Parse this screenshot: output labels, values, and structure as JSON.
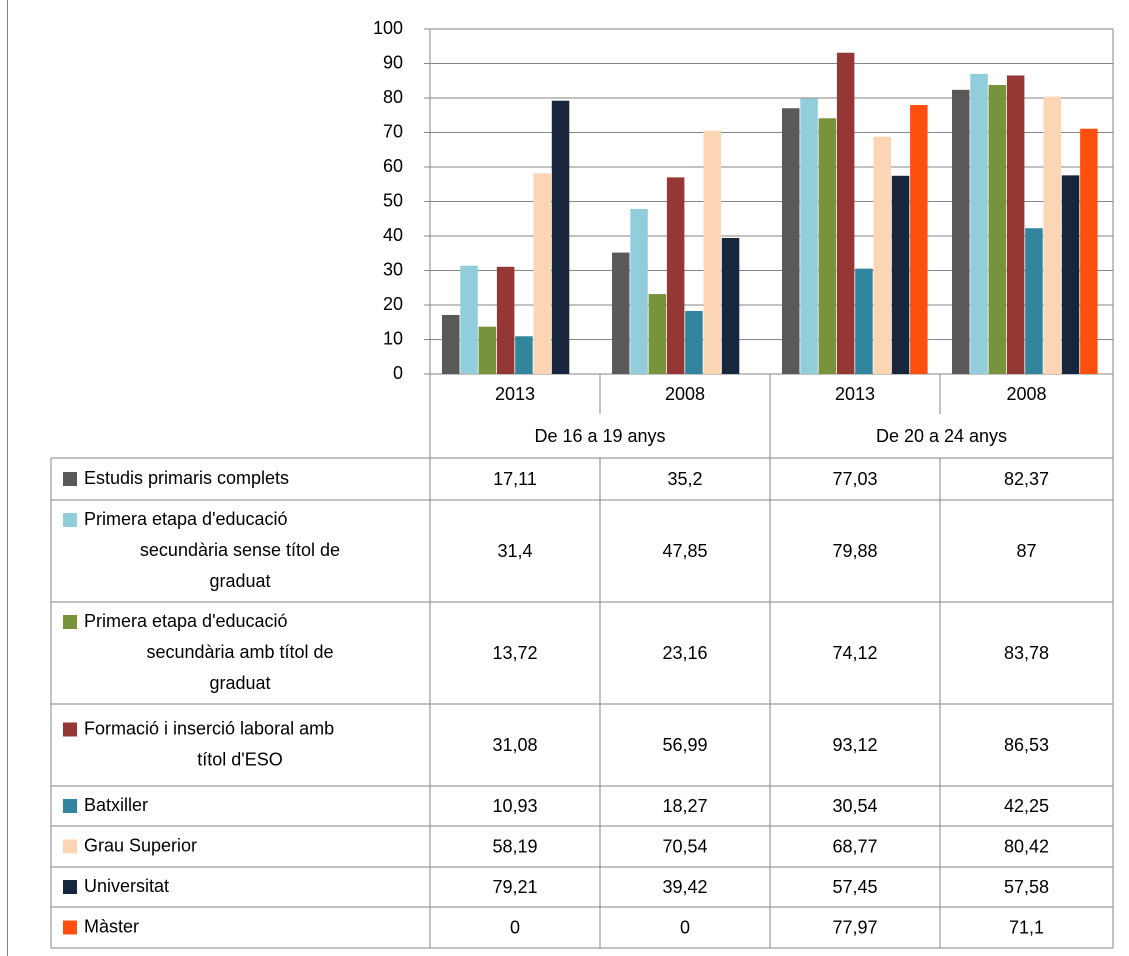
{
  "chart_data": {
    "type": "bar",
    "ylim": [
      0,
      100
    ],
    "yticks": [
      0,
      10,
      20,
      30,
      40,
      50,
      60,
      70,
      80,
      90,
      100
    ],
    "grid": true,
    "legend": "data-table",
    "groups": [
      {
        "label": "De 16 a 19 anys",
        "categories": [
          "2013",
          "2008"
        ]
      },
      {
        "label": "De 20 a 24 anys",
        "categories": [
          "2013",
          "2008"
        ]
      }
    ],
    "categories": [
      "2013",
      "2008",
      "2013",
      "2008"
    ],
    "series": [
      {
        "name": "Estudis primaris complets",
        "color": "#595959",
        "values": [
          17.11,
          35.2,
          77.03,
          82.37
        ],
        "labels": [
          "17,11",
          "35,2",
          "77,03",
          "82,37"
        ]
      },
      {
        "name": "Primera etapa d'educació secundària sense títol de graduat",
        "color": "#92cddc",
        "values": [
          31.4,
          47.85,
          79.88,
          87
        ],
        "labels": [
          "31,4",
          "47,85",
          "79,88",
          "87"
        ]
      },
      {
        "name": "Primera etapa d'educació secundària amb títol de graduat",
        "color": "#77933c",
        "values": [
          13.72,
          23.16,
          74.12,
          83.78
        ],
        "labels": [
          "13,72",
          "23,16",
          "74,12",
          "83,78"
        ]
      },
      {
        "name": "Formació i inserció laboral amb títol d'ESO",
        "color": "#953735",
        "values": [
          31.08,
          56.99,
          93.12,
          86.53
        ],
        "labels": [
          "31,08",
          "56,99",
          "93,12",
          "86,53"
        ]
      },
      {
        "name": "Batxiller",
        "color": "#31859c",
        "values": [
          10.93,
          18.27,
          30.54,
          42.25
        ],
        "labels": [
          "10,93",
          "18,27",
          "30,54",
          "42,25"
        ]
      },
      {
        "name": "Grau Superior",
        "color": "#fcd5b5",
        "values": [
          58.19,
          70.54,
          68.77,
          80.42
        ],
        "labels": [
          "58,19",
          "70,54",
          "68,77",
          "80,42"
        ]
      },
      {
        "name": "Universitat",
        "color": "#17263d",
        "values": [
          79.21,
          39.42,
          57.45,
          57.58
        ],
        "labels": [
          "79,21",
          "39,42",
          "57,45",
          "57,58"
        ]
      },
      {
        "name": "Màster",
        "color": "#ff4f0f",
        "values": [
          0,
          0,
          77.97,
          71.1
        ],
        "labels": [
          "0",
          "0",
          "77,97",
          "71,1"
        ]
      }
    ]
  }
}
